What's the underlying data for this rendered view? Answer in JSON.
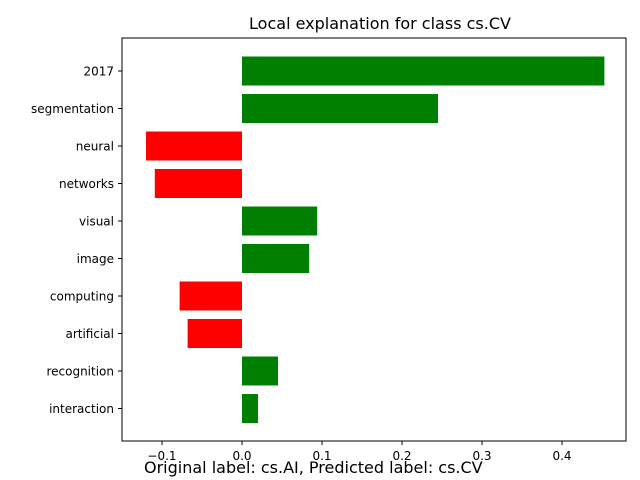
{
  "chart_data": {
    "type": "bar",
    "orientation": "horizontal",
    "title": "Local explanation for class cs.CV",
    "categories": [
      "2017",
      "segmentation",
      "neural",
      "networks",
      "visual",
      "image",
      "computing",
      "artificial",
      "recognition",
      "interaction"
    ],
    "values": [
      0.453,
      0.245,
      -0.12,
      -0.109,
      0.094,
      0.084,
      -0.078,
      -0.068,
      0.045,
      0.02
    ],
    "xlim": [
      -0.15,
      0.48
    ],
    "xticks": [
      -0.1,
      0.0,
      0.1,
      0.2,
      0.3,
      0.4
    ],
    "xtick_labels": [
      "−0.1",
      "0.0",
      "0.1",
      "0.2",
      "0.3",
      "0.4"
    ],
    "colors": {
      "positive": "#008000",
      "negative": "#ff0000"
    },
    "grid": false
  },
  "caption": "Original label: cs.AI, Predicted label: cs.CV"
}
